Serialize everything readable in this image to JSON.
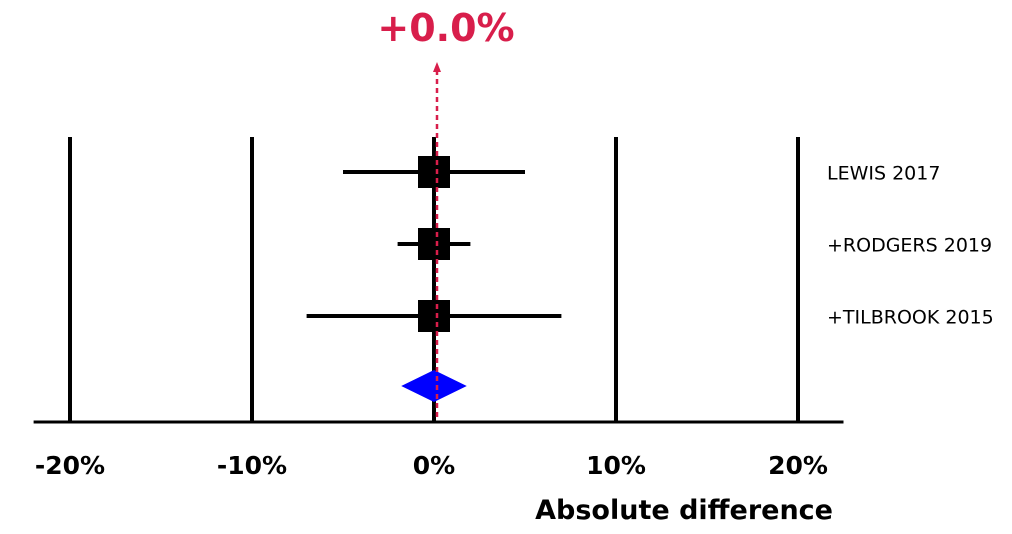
{
  "colors": {
    "estimate": "#d81e4b",
    "pooled": "#0000ff",
    "axis": "#000000"
  },
  "chart_data": {
    "type": "forest",
    "title": "",
    "pooled_estimate_label": "+0.0%",
    "xlabel": "Absolute difference",
    "xlim": [
      -22,
      22.5
    ],
    "xticks": [
      -20,
      -10,
      0,
      10,
      20
    ],
    "xtick_labels": [
      "-20%",
      "-10%",
      "0%",
      "10%",
      "20%"
    ],
    "studies": [
      {
        "name": "LEWIS 2017",
        "estimate": 0,
        "ci_low": -5,
        "ci_high": 5
      },
      {
        "name": "+RODGERS 2019",
        "estimate": 0,
        "ci_low": -2,
        "ci_high": 2
      },
      {
        "name": "+TILBROOK 2015",
        "estimate": 0,
        "ci_low": -7,
        "ci_high": 7
      }
    ],
    "pooled": {
      "estimate": 0,
      "ci_low": -1.8,
      "ci_high": 1.8
    }
  }
}
